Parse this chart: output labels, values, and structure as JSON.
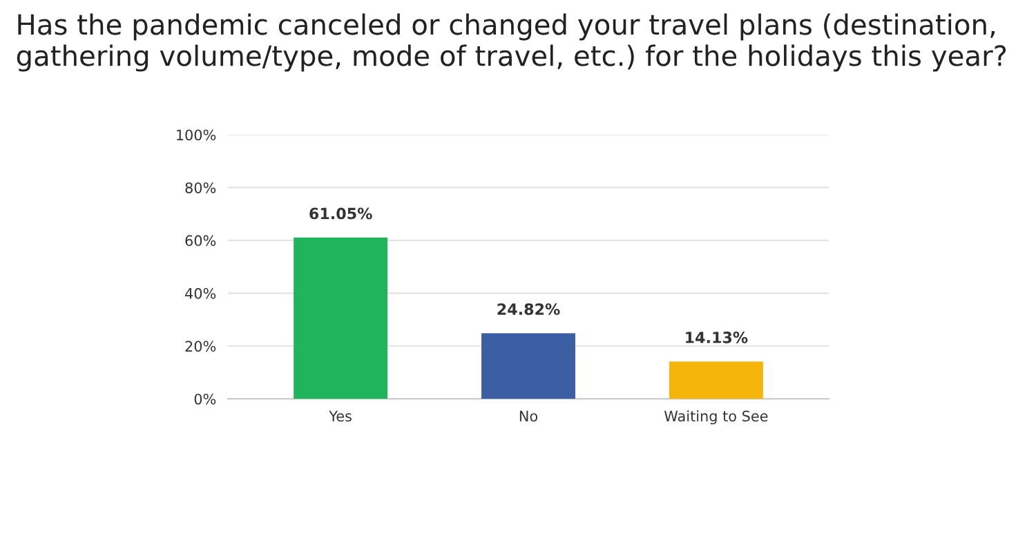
{
  "chart_data": {
    "type": "bar",
    "title": "Has the pandemic canceled or changed your travel plans (destination, gathering volume/type, mode of travel, etc.) for the holidays this year?",
    "categories": [
      "Yes",
      "No",
      "Waiting to See"
    ],
    "values": [
      61.05,
      24.82,
      14.13
    ],
    "colors": [
      "#20b55c",
      "#3c5fa3",
      "#f5b50a"
    ],
    "value_labels": [
      "61.05%",
      "24.82%",
      "14.13%"
    ],
    "ylim": [
      0,
      100
    ],
    "yticks": [
      {
        "value": 0,
        "label": "0%"
      },
      {
        "value": 20,
        "label": "20%"
      },
      {
        "value": 40,
        "label": "40%"
      },
      {
        "value": 60,
        "label": "60%"
      },
      {
        "value": 80,
        "label": "80%"
      },
      {
        "value": 100,
        "label": "100%"
      }
    ],
    "grid": "y"
  }
}
